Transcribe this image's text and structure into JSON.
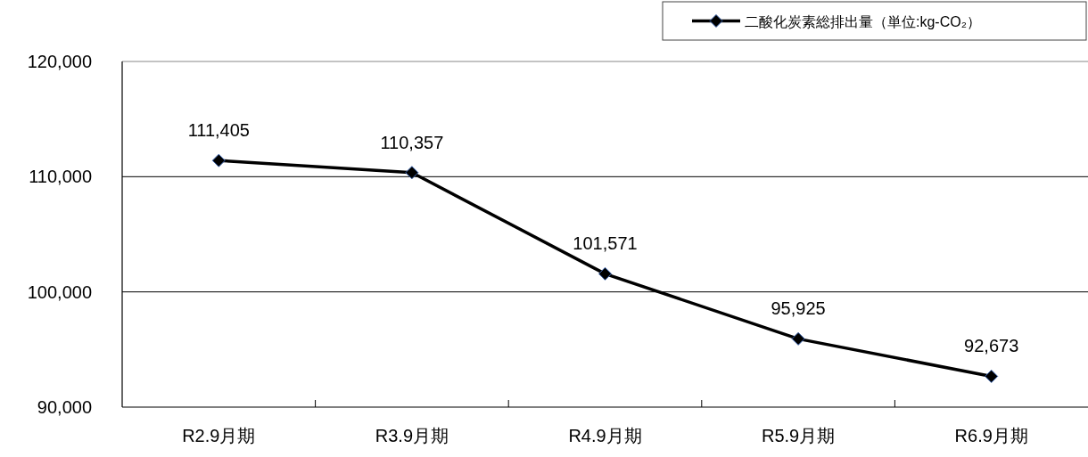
{
  "chart_data": {
    "type": "line",
    "categories": [
      "R2.9月期",
      "R3.9月期",
      "R4.9月期",
      "R5.9月期",
      "R6.9月期"
    ],
    "series": [
      {
        "name": "二酸化炭素総排出量（単位:kg-CO₂）",
        "color": "#000000",
        "values": [
          111405,
          110357,
          101571,
          95925,
          92673
        ],
        "value_labels": [
          "111,405",
          "110,357",
          "101,571",
          "95,925",
          "92,673"
        ]
      }
    ],
    "ylim": [
      90000,
      120000
    ],
    "yticks": [
      {
        "value": 90000,
        "label": "90,000"
      },
      {
        "value": 100000,
        "label": "100,000"
      },
      {
        "value": 110000,
        "label": "110,000"
      },
      {
        "value": 120000,
        "label": "120,000"
      }
    ],
    "grid": "y",
    "legend": "top right",
    "marker": "diamond",
    "line_style": "solid"
  }
}
